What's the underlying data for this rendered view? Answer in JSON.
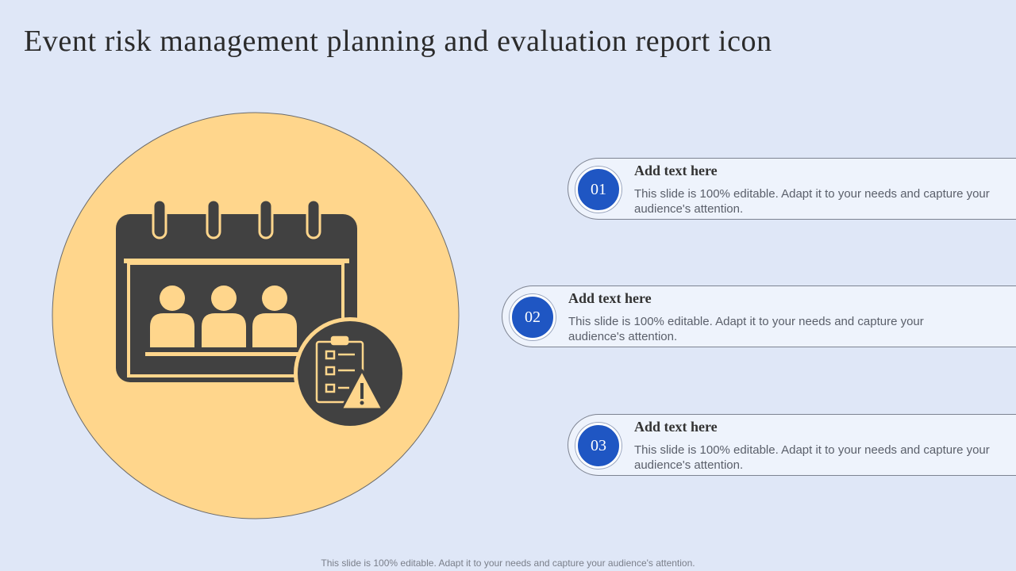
{
  "slide": {
    "title": "Event risk management planning and evaluation report icon",
    "footer": "This slide is 100% editable. Adapt it to your needs and capture your audience's attention."
  },
  "colors": {
    "background": "#dfe7f7",
    "circle_fill": "#ffd68c",
    "icon_dark": "#414141",
    "badge_blue": "#1f56c3",
    "card_fill": "#eef3fc"
  },
  "illustration": {
    "icons": [
      "calendar-icon",
      "audience-people-icon",
      "clipboard-checklist-icon",
      "warning-triangle-icon"
    ]
  },
  "items": [
    {
      "number": "01",
      "heading": "Add text here",
      "text": "This slide is 100% editable. Adapt it to your needs and capture your audience's attention."
    },
    {
      "number": "02",
      "heading": "Add text here",
      "text": "This slide is 100% editable. Adapt it to your needs and capture your audience's attention."
    },
    {
      "number": "03",
      "heading": "Add text here",
      "text": "This slide is 100% editable. Adapt it to your needs and capture your audience's attention."
    }
  ]
}
